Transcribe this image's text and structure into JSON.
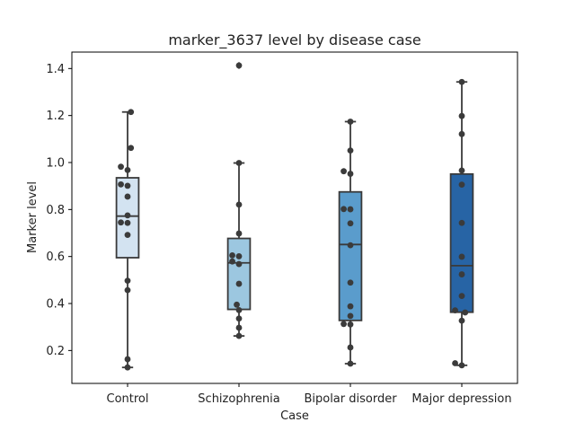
{
  "chart_data": {
    "type": "box",
    "title": "marker_3637 level by disease case",
    "xlabel": "Case",
    "ylabel": "Marker level",
    "ylim": [
      0.06,
      1.47
    ],
    "yticks": [
      0.2,
      0.4,
      0.6,
      0.8,
      1.0,
      1.2,
      1.4
    ],
    "ytick_labels": [
      "0.2",
      "0.4",
      "0.6",
      "0.8",
      "1.0",
      "1.2",
      "1.4"
    ],
    "categories": [
      "Control",
      "Schizophrenia",
      "Bipolar disorder",
      "Major depression"
    ],
    "colors": [
      "#d3e3f1",
      "#9cc7e0",
      "#5a9ccc",
      "#2764a5"
    ],
    "grid": false,
    "boxes": [
      {
        "category": "Control",
        "q1": 0.595,
        "median": 0.772,
        "q3": 0.935,
        "whisker_low": 0.128,
        "whisker_high": 1.215,
        "fliers": []
      },
      {
        "category": "Schizophrenia",
        "q1": 0.375,
        "median": 0.573,
        "q3": 0.677,
        "whisker_low": 0.262,
        "whisker_high": 0.998,
        "fliers": [
          1.413
        ]
      },
      {
        "category": "Bipolar disorder",
        "q1": 0.328,
        "median": 0.651,
        "q3": 0.875,
        "whisker_low": 0.144,
        "whisker_high": 1.174,
        "fliers": []
      },
      {
        "category": "Major depression",
        "q1": 0.363,
        "median": 0.561,
        "q3": 0.951,
        "whisker_low": 0.137,
        "whisker_high": 1.343,
        "fliers": []
      }
    ],
    "points": [
      {
        "category": "Control",
        "values": [
          1.215,
          1.062,
          0.982,
          0.968,
          0.907,
          0.901,
          0.855,
          0.775,
          0.745,
          0.743,
          0.692,
          0.497,
          0.457,
          0.163,
          0.128
        ],
        "offsets": [
          0.03,
          0.03,
          -0.06,
          0.0,
          -0.06,
          0.0,
          0.0,
          0.0,
          -0.06,
          0.0,
          0.0,
          0.0,
          0.0,
          0.0,
          0.0
        ]
      },
      {
        "category": "Schizophrenia",
        "values": [
          1.413,
          0.998,
          0.821,
          0.698,
          0.605,
          0.601,
          0.579,
          0.568,
          0.484,
          0.395,
          0.372,
          0.336,
          0.297,
          0.262
        ],
        "offsets": [
          0.0,
          0.0,
          0.0,
          0.0,
          -0.06,
          0.0,
          -0.06,
          0.0,
          0.0,
          -0.02,
          0.0,
          0.0,
          0.0,
          0.0
        ]
      },
      {
        "category": "Bipolar disorder",
        "values": [
          1.174,
          1.051,
          0.963,
          0.952,
          0.802,
          0.801,
          0.741,
          0.648,
          0.489,
          0.388,
          0.347,
          0.313,
          0.311,
          0.213,
          0.144
        ],
        "offsets": [
          0.0,
          0.0,
          -0.06,
          0.0,
          -0.06,
          0.0,
          0.0,
          0.0,
          0.0,
          0.0,
          0.0,
          -0.06,
          0.0,
          0.0,
          0.0
        ]
      },
      {
        "category": "Major depression",
        "values": [
          1.343,
          1.198,
          1.121,
          0.966,
          0.906,
          0.743,
          0.599,
          0.524,
          0.432,
          0.371,
          0.362,
          0.327,
          0.146,
          0.137
        ],
        "offsets": [
          0.0,
          0.0,
          0.0,
          0.0,
          0.0,
          0.0,
          0.0,
          0.0,
          0.0,
          -0.06,
          0.03,
          0.0,
          -0.06,
          0.0
        ]
      }
    ]
  }
}
